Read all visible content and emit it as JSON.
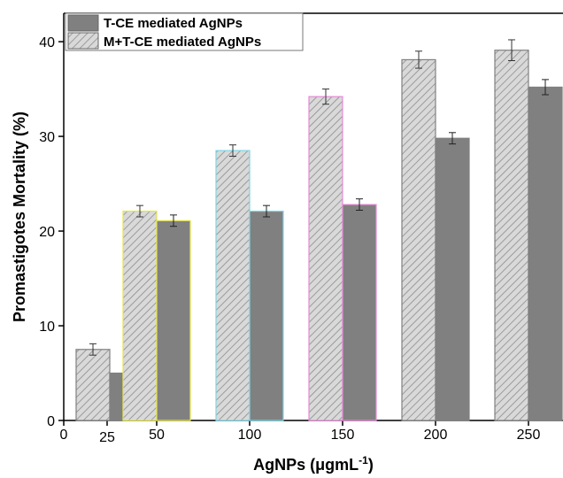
{
  "chart_data": {
    "type": "bar",
    "title": "",
    "xlabel": "AgNPs (μgmL",
    "xlabel_sup": "-1",
    "xlabel_close": ")",
    "ylabel": "Promastigotes Mortality (%)",
    "ylim": [
      0,
      43
    ],
    "yticks": [
      0,
      10,
      20,
      30,
      40
    ],
    "xticks": [
      "0",
      "25",
      "50",
      "100",
      "150",
      "200",
      "250"
    ],
    "categories": [
      "25",
      "50",
      "100",
      "150",
      "200",
      "250"
    ],
    "legend_position": "top-left",
    "series": [
      {
        "name": "T-CE mediated AgNPs",
        "style": "solid",
        "fill": "#808080",
        "values": [
          5.0,
          21.1,
          22.1,
          22.8,
          29.8,
          35.2
        ],
        "errors": [
          0.5,
          0.6,
          0.6,
          0.6,
          0.6,
          0.8
        ]
      },
      {
        "name": "M+T-CE mediated AgNPs",
        "style": "hatched",
        "fill": "#d3d3d3",
        "values": [
          7.5,
          22.1,
          28.5,
          34.2,
          38.1,
          39.1
        ],
        "errors": [
          0.6,
          0.6,
          0.6,
          0.8,
          0.9,
          1.1
        ]
      }
    ],
    "outline_colors": [
      "#808080",
      "#e6e64c",
      "#7fd6e6",
      "#e68ad6",
      "#808080",
      "#808080"
    ]
  }
}
